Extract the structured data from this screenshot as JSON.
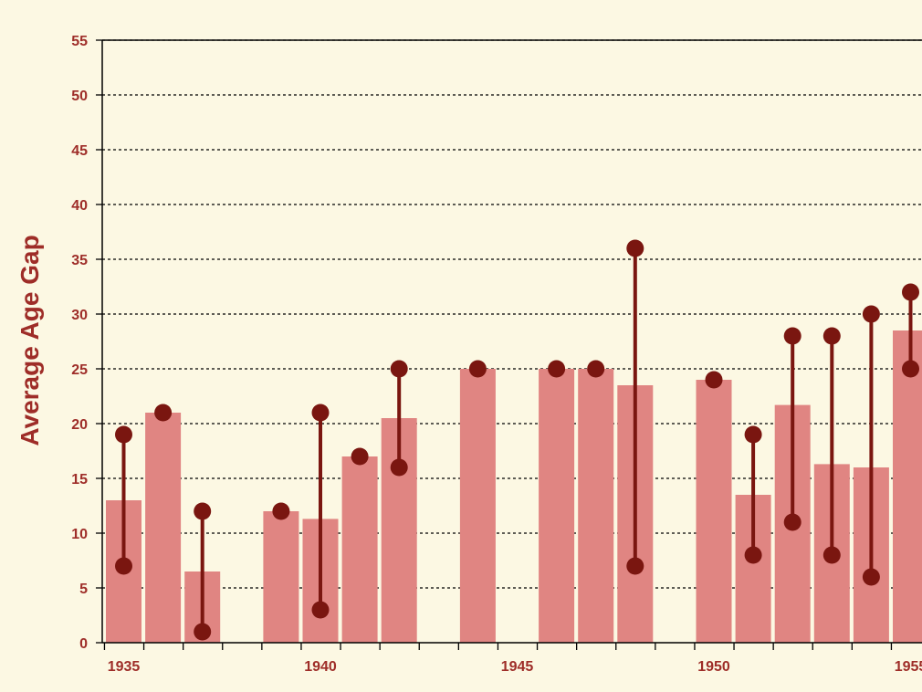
{
  "colors": {
    "background": "#fcf8e3",
    "bar": "#e08582",
    "dot": "#7a1610",
    "text": "#9e2d28",
    "axis": "#000000"
  },
  "chart_data": {
    "type": "bar",
    "title": "",
    "xlabel": "",
    "ylabel": "Average Age Gap",
    "ylim": [
      0,
      55
    ],
    "yticks": [
      0,
      5,
      10,
      15,
      20,
      25,
      30,
      35,
      40,
      45,
      50,
      55
    ],
    "xticks": [
      1935,
      1940,
      1945,
      1950,
      1955
    ],
    "xtick_labels": [
      "1935",
      "1940",
      "1945",
      "1950",
      "1955"
    ],
    "grid": "horizontal-dashed",
    "series": [
      {
        "type": "bar",
        "x": [
          1935,
          1936,
          1937,
          1939,
          1940,
          1941,
          1942,
          1944,
          1946,
          1947,
          1948,
          1950,
          1951,
          1952,
          1953,
          1954,
          1955
        ],
        "values": [
          13,
          21,
          6.5,
          12,
          11.3,
          17,
          20.5,
          25,
          25,
          25,
          23.5,
          24,
          13.5,
          21.7,
          16.3,
          16,
          28.5
        ]
      },
      {
        "type": "dumbbell",
        "x": [
          1935,
          1936,
          1937,
          1939,
          1940,
          1941,
          1942,
          1944,
          1946,
          1947,
          1948,
          1950,
          1951,
          1952,
          1953,
          1954,
          1955
        ],
        "min": [
          7,
          21,
          1,
          12,
          3,
          17,
          16,
          25,
          25,
          25,
          7,
          24,
          8,
          11,
          8,
          6,
          25
        ],
        "max": [
          19,
          21,
          12,
          12,
          21,
          17,
          25,
          25,
          25,
          25,
          36,
          24,
          19,
          28,
          28,
          30,
          32
        ]
      }
    ]
  }
}
